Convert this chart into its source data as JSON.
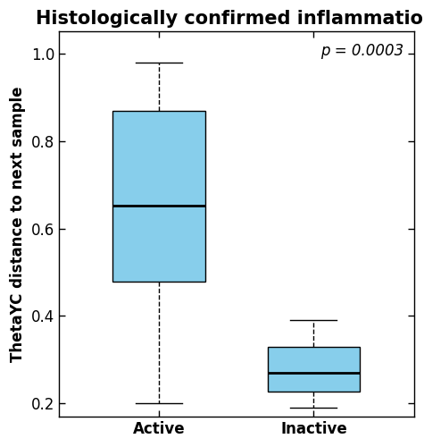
{
  "title": "Histologically confirmed inflammation",
  "ylabel": "ThetaYC distance to next sample",
  "categories": [
    "Active",
    "Inactive"
  ],
  "active": {
    "median": 0.653,
    "q1": 0.478,
    "q3": 0.868,
    "whislo": 0.2,
    "whishi": 0.98
  },
  "inactive": {
    "median": 0.27,
    "q1": 0.228,
    "q3": 0.33,
    "whislo": 0.19,
    "whishi": 0.39
  },
  "box_color": "#87CEEB",
  "ylim": [
    0.17,
    1.05
  ],
  "yticks": [
    0.2,
    0.4,
    0.6,
    0.8,
    1.0
  ],
  "p_value_text": "p = 0.0003",
  "background_color": "#ffffff",
  "title_fontsize": 15,
  "label_fontsize": 12,
  "tick_fontsize": 12,
  "pval_fontsize": 12
}
